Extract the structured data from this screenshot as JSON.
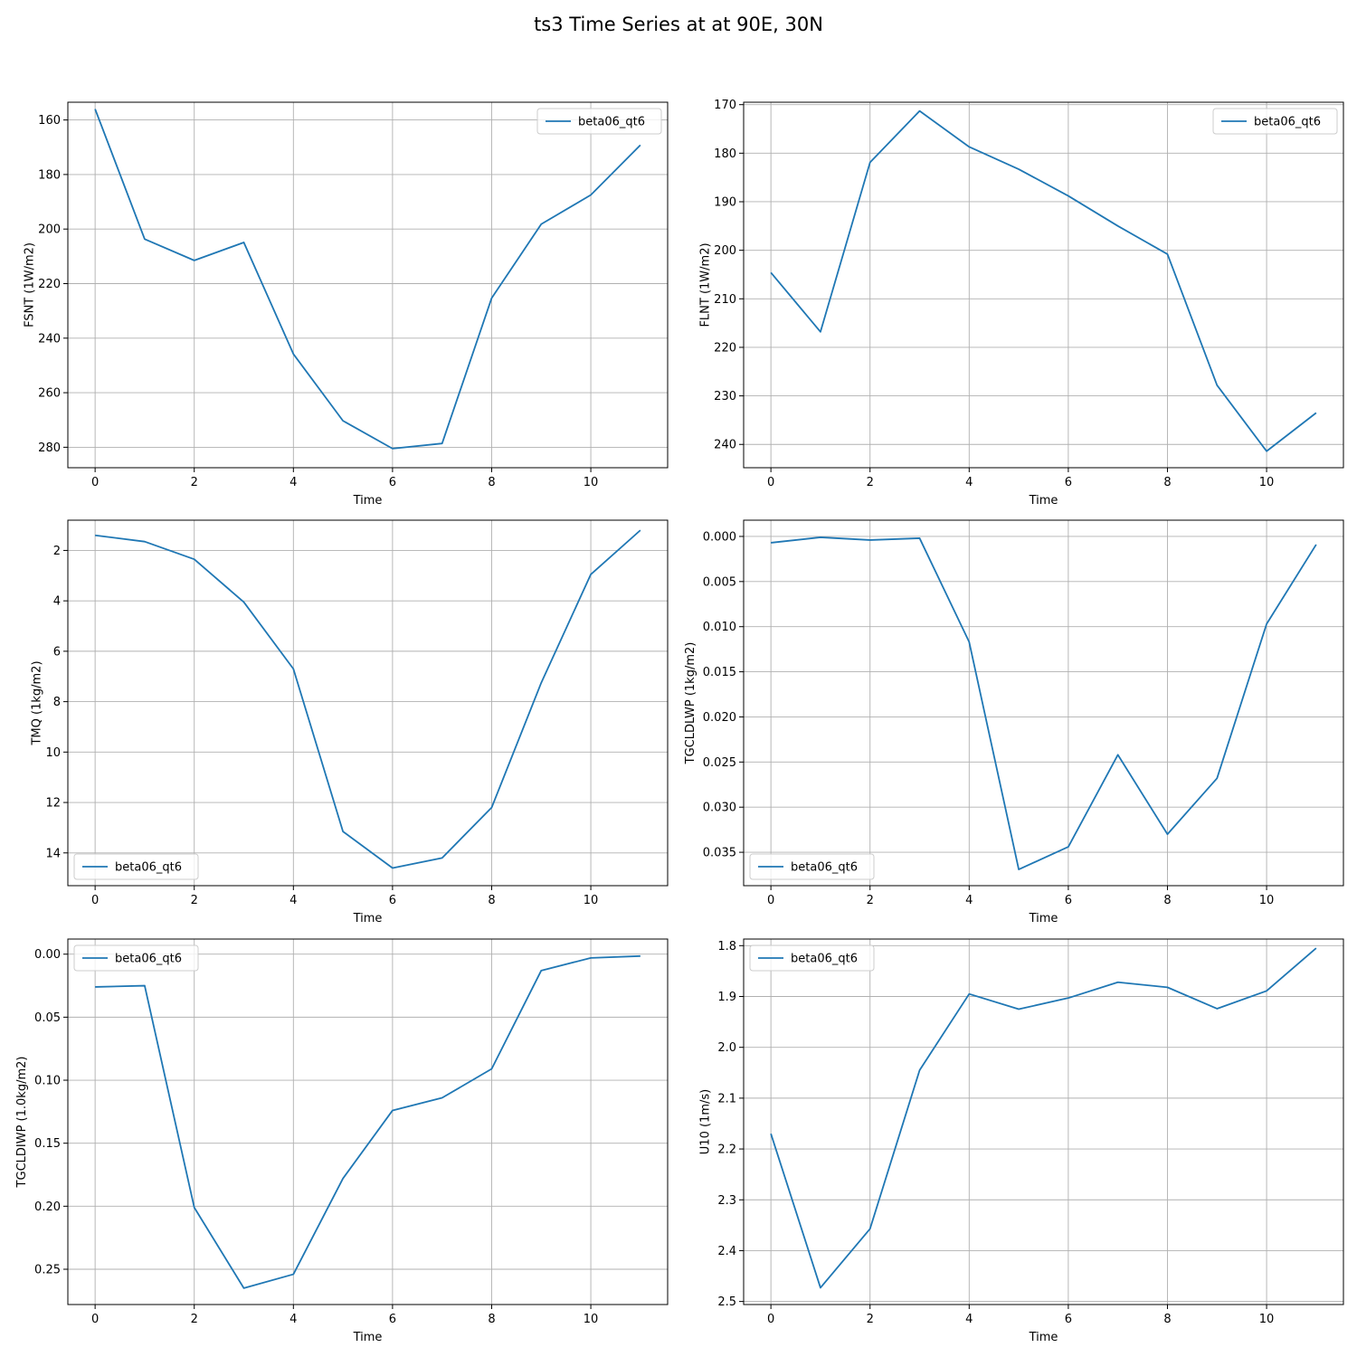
{
  "figure": {
    "title": "ts3 Time Series at at 90E, 30N"
  },
  "colors": {
    "line": "#1f77b4",
    "grid": "#b0b0b0",
    "axis": "#000000",
    "legend_border": "#cccccc"
  },
  "chart_data": [
    {
      "type": "line",
      "xlabel": "Time",
      "ylabel": "FSNT (1W/m2)",
      "y_inverted": true,
      "grid": true,
      "legend_position": "upper right",
      "x": [
        0,
        1,
        2,
        3,
        4,
        5,
        6,
        7,
        8,
        9,
        10,
        11
      ],
      "xlim": [
        -0.55,
        11.55
      ],
      "x_ticks": [
        0,
        2,
        4,
        6,
        8,
        10
      ],
      "x_tick_labels": [
        "0",
        "2",
        "4",
        "6",
        "8",
        "10"
      ],
      "ylim": [
        153.5,
        287.5
      ],
      "y_ticks": [
        160,
        180,
        200,
        220,
        240,
        260,
        280
      ],
      "y_tick_labels": [
        "160",
        "180",
        "200",
        "220",
        "240",
        "260",
        "280"
      ],
      "series": [
        {
          "name": "beta06_qt6",
          "values": [
            156.0,
            203.7,
            211.5,
            204.9,
            245.8,
            270.3,
            280.5,
            278.6,
            225.3,
            198.2,
            187.5,
            169.2
          ]
        }
      ]
    },
    {
      "type": "line",
      "xlabel": "Time",
      "ylabel": "FLNT (1W/m2)",
      "y_inverted": true,
      "grid": true,
      "legend_position": "upper right",
      "x": [
        0,
        1,
        2,
        3,
        4,
        5,
        6,
        7,
        8,
        9,
        10,
        11
      ],
      "xlim": [
        -0.55,
        11.55
      ],
      "x_ticks": [
        0,
        2,
        4,
        6,
        8,
        10
      ],
      "x_tick_labels": [
        "0",
        "2",
        "4",
        "6",
        "8",
        "10"
      ],
      "ylim": [
        169.5,
        244.8
      ],
      "y_ticks": [
        170,
        180,
        190,
        200,
        210,
        220,
        230,
        240
      ],
      "y_tick_labels": [
        "170",
        "180",
        "190",
        "200",
        "210",
        "220",
        "230",
        "240"
      ],
      "series": [
        {
          "name": "beta06_qt6",
          "values": [
            204.6,
            216.8,
            181.9,
            171.3,
            178.7,
            183.3,
            188.8,
            195.0,
            200.8,
            227.8,
            241.4,
            233.5
          ]
        }
      ]
    },
    {
      "type": "line",
      "xlabel": "Time",
      "ylabel": "TMQ (1kg/m2)",
      "y_inverted": true,
      "grid": true,
      "legend_position": "lower left",
      "x": [
        0,
        1,
        2,
        3,
        4,
        5,
        6,
        7,
        8,
        9,
        10,
        11
      ],
      "xlim": [
        -0.55,
        11.55
      ],
      "x_ticks": [
        0,
        2,
        4,
        6,
        8,
        10
      ],
      "x_tick_labels": [
        "0",
        "2",
        "4",
        "6",
        "8",
        "10"
      ],
      "ylim": [
        0.8,
        15.3
      ],
      "y_ticks": [
        2,
        4,
        6,
        8,
        10,
        12,
        14
      ],
      "y_tick_labels": [
        "2",
        "4",
        "6",
        "8",
        "10",
        "12",
        "14"
      ],
      "series": [
        {
          "name": "beta06_qt6",
          "values": [
            1.4,
            1.65,
            2.35,
            4.05,
            6.7,
            13.15,
            14.6,
            14.2,
            12.2,
            7.25,
            2.95,
            1.2
          ]
        }
      ]
    },
    {
      "type": "line",
      "xlabel": "Time",
      "ylabel": "TGCLDLWP (1kg/m2)",
      "y_inverted": true,
      "grid": true,
      "legend_position": "lower left",
      "x": [
        0,
        1,
        2,
        3,
        4,
        5,
        6,
        7,
        8,
        9,
        10,
        11
      ],
      "xlim": [
        -0.55,
        11.55
      ],
      "x_ticks": [
        0,
        2,
        4,
        6,
        8,
        10
      ],
      "x_tick_labels": [
        "0",
        "2",
        "4",
        "6",
        "8",
        "10"
      ],
      "ylim": [
        -0.0018,
        0.0387
      ],
      "y_ticks": [
        0.0,
        0.005,
        0.01,
        0.015,
        0.02,
        0.025,
        0.03,
        0.035
      ],
      "y_tick_labels": [
        "0.000",
        "0.005",
        "0.010",
        "0.015",
        "0.020",
        "0.025",
        "0.030",
        "0.035"
      ],
      "series": [
        {
          "name": "beta06_qt6",
          "values": [
            0.0007,
            0.0001,
            0.0004,
            0.0002,
            0.0117,
            0.0369,
            0.0344,
            0.0242,
            0.033,
            0.0268,
            0.0097,
            0.0009
          ]
        }
      ]
    },
    {
      "type": "line",
      "xlabel": "Time",
      "ylabel": "TGCLDIWP (1.0kg/m2)",
      "y_inverted": true,
      "grid": true,
      "legend_position": "upper left",
      "x": [
        0,
        1,
        2,
        3,
        4,
        5,
        6,
        7,
        8,
        9,
        10,
        11
      ],
      "xlim": [
        -0.55,
        11.55
      ],
      "x_ticks": [
        0,
        2,
        4,
        6,
        8,
        10
      ],
      "x_tick_labels": [
        "0",
        "2",
        "4",
        "6",
        "8",
        "10"
      ],
      "ylim": [
        -0.012,
        0.278
      ],
      "y_ticks": [
        0.0,
        0.05,
        0.1,
        0.15,
        0.2,
        0.25
      ],
      "y_tick_labels": [
        "0.00",
        "0.05",
        "0.10",
        "0.15",
        "0.20",
        "0.25"
      ],
      "series": [
        {
          "name": "beta06_qt6",
          "values": [
            0.026,
            0.025,
            0.201,
            0.265,
            0.254,
            0.178,
            0.124,
            0.114,
            0.091,
            0.013,
            0.003,
            0.0015
          ]
        }
      ]
    },
    {
      "type": "line",
      "xlabel": "Time",
      "ylabel": "U10 (1m/s)",
      "y_inverted": true,
      "grid": true,
      "legend_position": "upper left",
      "x": [
        0,
        1,
        2,
        3,
        4,
        5,
        6,
        7,
        8,
        9,
        10,
        11
      ],
      "xlim": [
        -0.55,
        11.55
      ],
      "x_ticks": [
        0,
        2,
        4,
        6,
        8,
        10
      ],
      "x_tick_labels": [
        "0",
        "2",
        "4",
        "6",
        "8",
        "10"
      ],
      "ylim": [
        1.787,
        2.506
      ],
      "y_ticks": [
        1.8,
        1.9,
        2.0,
        2.1,
        2.2,
        2.3,
        2.4,
        2.5
      ],
      "y_tick_labels": [
        "1.8",
        "1.9",
        "2.0",
        "2.1",
        "2.2",
        "2.3",
        "2.4",
        "2.5"
      ],
      "series": [
        {
          "name": "beta06_qt6",
          "values": [
            2.17,
            2.473,
            2.357,
            2.045,
            1.895,
            1.925,
            1.903,
            1.872,
            1.882,
            1.924,
            1.889,
            1.805
          ]
        }
      ]
    }
  ]
}
